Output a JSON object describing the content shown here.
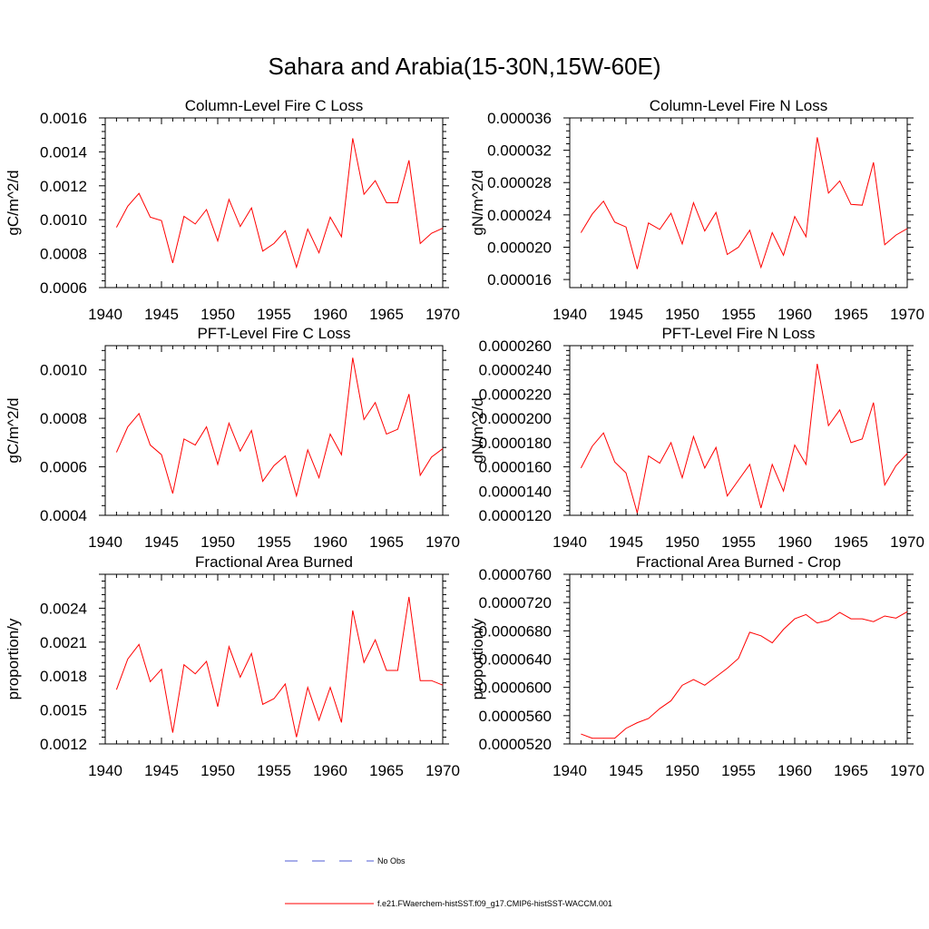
{
  "figure": {
    "title": "Sahara and Arabia(15-30N,15W-60E)",
    "legend": [
      {
        "label": "No Obs",
        "color": "#4f5bd5",
        "style": "dashed"
      },
      {
        "label": "f.e21.FWaerchem-histSST.f09_g17.CMIP6-histSST-WACCM.001",
        "color": "#ff0000",
        "style": "solid"
      }
    ]
  },
  "chart_data": [
    {
      "type": "line",
      "title": "Column-Level Fire C Loss",
      "ylabel": "gC/m^2/d",
      "xlim": [
        1940,
        1970
      ],
      "ylim": [
        0.0006,
        0.0016
      ],
      "xticks": [
        1940,
        1945,
        1950,
        1955,
        1960,
        1965,
        1970
      ],
      "yticks": [
        "0.0006",
        "0.0008",
        "0.0010",
        "0.0012",
        "0.0014",
        "0.0016"
      ],
      "x": [
        1941,
        1942,
        1943,
        1944,
        1945,
        1946,
        1947,
        1948,
        1949,
        1950,
        1951,
        1952,
        1953,
        1954,
        1955,
        1956,
        1957,
        1958,
        1959,
        1960,
        1961,
        1962,
        1963,
        1964,
        1965,
        1966,
        1967,
        1968,
        1969,
        1970
      ],
      "series": [
        {
          "color": "#ff0000",
          "values": [
            0.000955,
            0.00108,
            0.001155,
            0.001015,
            0.000995,
            0.000745,
            0.00102,
            0.000975,
            0.00106,
            0.000875,
            0.00112,
            0.00096,
            0.00107,
            0.000815,
            0.00086,
            0.000935,
            0.00072,
            0.000945,
            0.000805,
            0.001015,
            0.0009,
            0.00148,
            0.00115,
            0.00123,
            0.0011,
            0.0011,
            0.00135,
            0.00086,
            0.00092,
            0.00095
          ]
        }
      ]
    },
    {
      "type": "line",
      "title": "Column-Level Fire N Loss",
      "ylabel": "gN/m^2/d",
      "xlim": [
        1940,
        1970
      ],
      "ylim": [
        1.5e-05,
        3.6e-05
      ],
      "xticks": [
        1940,
        1945,
        1950,
        1955,
        1960,
        1965,
        1970
      ],
      "yticks": [
        "0.000016",
        "0.000020",
        "0.000024",
        "0.000028",
        "0.000032",
        "0.000036"
      ],
      "x": [
        1941,
        1942,
        1943,
        1944,
        1945,
        1946,
        1947,
        1948,
        1949,
        1950,
        1951,
        1952,
        1953,
        1954,
        1955,
        1956,
        1957,
        1958,
        1959,
        1960,
        1961,
        1962,
        1963,
        1964,
        1965,
        1966,
        1967,
        1968,
        1969,
        1970
      ],
      "series": [
        {
          "color": "#ff0000",
          "values": [
            2.18e-05,
            2.41e-05,
            2.57e-05,
            2.31e-05,
            2.25e-05,
            1.73e-05,
            2.3e-05,
            2.22e-05,
            2.42e-05,
            2.04e-05,
            2.55e-05,
            2.2e-05,
            2.43e-05,
            1.91e-05,
            2e-05,
            2.21e-05,
            1.75e-05,
            2.18e-05,
            1.9e-05,
            2.38e-05,
            2.13e-05,
            3.36e-05,
            2.67e-05,
            2.82e-05,
            2.53e-05,
            2.52e-05,
            3.05e-05,
            2.03e-05,
            2.15e-05,
            2.23e-05
          ]
        }
      ]
    },
    {
      "type": "line",
      "title": "PFT-Level Fire C Loss",
      "ylabel": "gC/m^2/d",
      "xlim": [
        1940,
        1970
      ],
      "ylim": [
        0.0004,
        0.0011
      ],
      "xticks": [
        1940,
        1945,
        1950,
        1955,
        1960,
        1965,
        1970
      ],
      "yticks": [
        "0.0004",
        "0.0006",
        "0.0008",
        "0.0010"
      ],
      "x": [
        1941,
        1942,
        1943,
        1944,
        1945,
        1946,
        1947,
        1948,
        1949,
        1950,
        1951,
        1952,
        1953,
        1954,
        1955,
        1956,
        1957,
        1958,
        1959,
        1960,
        1961,
        1962,
        1963,
        1964,
        1965,
        1966,
        1967,
        1968,
        1969,
        1970
      ],
      "series": [
        {
          "color": "#ff0000",
          "values": [
            0.00066,
            0.000765,
            0.00082,
            0.00069,
            0.00065,
            0.00049,
            0.000715,
            0.00069,
            0.000765,
            0.00061,
            0.00078,
            0.000665,
            0.00075,
            0.00054,
            0.000605,
            0.000645,
            0.00048,
            0.00067,
            0.000555,
            0.000735,
            0.00065,
            0.00105,
            0.000795,
            0.000865,
            0.000735,
            0.000755,
            0.0009,
            0.000565,
            0.00064,
            0.000675
          ]
        }
      ]
    },
    {
      "type": "line",
      "title": "PFT-Level Fire N Loss",
      "ylabel": "gN/m^2/d",
      "xlim": [
        1940,
        1970
      ],
      "ylim": [
        1.2e-05,
        2.6e-05
      ],
      "xticks": [
        1940,
        1945,
        1950,
        1955,
        1960,
        1965,
        1970
      ],
      "yticks": [
        "0.0000120",
        "0.0000140",
        "0.0000160",
        "0.0000180",
        "0.0000200",
        "0.0000220",
        "0.0000240",
        "0.0000260"
      ],
      "x": [
        1941,
        1942,
        1943,
        1944,
        1945,
        1946,
        1947,
        1948,
        1949,
        1950,
        1951,
        1952,
        1953,
        1954,
        1955,
        1956,
        1957,
        1958,
        1959,
        1960,
        1961,
        1962,
        1963,
        1964,
        1965,
        1966,
        1967,
        1968,
        1969,
        1970
      ],
      "series": [
        {
          "color": "#ff0000",
          "values": [
            1.59e-05,
            1.77e-05,
            1.88e-05,
            1.64e-05,
            1.55e-05,
            1.22e-05,
            1.69e-05,
            1.63e-05,
            1.8e-05,
            1.51e-05,
            1.85e-05,
            1.59e-05,
            1.76e-05,
            1.36e-05,
            1.49e-05,
            1.62e-05,
            1.26e-05,
            1.62e-05,
            1.4e-05,
            1.78e-05,
            1.62e-05,
            2.45e-05,
            1.94e-05,
            2.07e-05,
            1.8e-05,
            1.83e-05,
            2.13e-05,
            1.45e-05,
            1.61e-05,
            1.71e-05
          ]
        }
      ]
    },
    {
      "type": "line",
      "title": "Fractional Area Burned",
      "ylabel": "proportion/y",
      "xlim": [
        1940,
        1970
      ],
      "ylim": [
        0.0012,
        0.0027
      ],
      "xticks": [
        1940,
        1945,
        1950,
        1955,
        1960,
        1965,
        1970
      ],
      "yticks": [
        "0.0012",
        "0.0015",
        "0.0018",
        "0.0021",
        "0.0024"
      ],
      "x": [
        1941,
        1942,
        1943,
        1944,
        1945,
        1946,
        1947,
        1948,
        1949,
        1950,
        1951,
        1952,
        1953,
        1954,
        1955,
        1956,
        1957,
        1958,
        1959,
        1960,
        1961,
        1962,
        1963,
        1964,
        1965,
        1966,
        1967,
        1968,
        1969,
        1970
      ],
      "series": [
        {
          "color": "#ff0000",
          "values": [
            0.00168,
            0.00195,
            0.00208,
            0.00175,
            0.00186,
            0.0013,
            0.0019,
            0.00182,
            0.00193,
            0.00153,
            0.00206,
            0.00179,
            0.002,
            0.00155,
            0.0016,
            0.00173,
            0.00126,
            0.0017,
            0.00141,
            0.0017,
            0.00139,
            0.00238,
            0.00192,
            0.00212,
            0.00185,
            0.00185,
            0.0025,
            0.00176,
            0.00176,
            0.00172
          ]
        }
      ]
    },
    {
      "type": "line",
      "title": "Fractional Area Burned - Crop",
      "ylabel": "proportion/y",
      "xlim": [
        1940,
        1970
      ],
      "ylim": [
        5.2e-05,
        7.6e-05
      ],
      "xticks": [
        1940,
        1945,
        1950,
        1955,
        1960,
        1965,
        1970
      ],
      "yticks": [
        "0.0000520",
        "0.0000560",
        "0.0000600",
        "0.0000640",
        "0.0000680",
        "0.0000720",
        "0.0000760"
      ],
      "x": [
        1941,
        1942,
        1943,
        1944,
        1945,
        1946,
        1947,
        1948,
        1949,
        1950,
        1951,
        1952,
        1953,
        1954,
        1955,
        1956,
        1957,
        1958,
        1959,
        1960,
        1961,
        1962,
        1963,
        1964,
        1965,
        1966,
        1967,
        1968,
        1969,
        1970
      ],
      "series": [
        {
          "color": "#ff0000",
          "values": [
            5.34e-05,
            5.28e-05,
            5.28e-05,
            5.28e-05,
            5.42e-05,
            5.5e-05,
            5.56e-05,
            5.7e-05,
            5.81e-05,
            6.03e-05,
            6.11e-05,
            6.03e-05,
            6.15e-05,
            6.27e-05,
            6.41e-05,
            6.78e-05,
            6.73e-05,
            6.63e-05,
            6.82e-05,
            6.97e-05,
            7.03e-05,
            6.91e-05,
            6.95e-05,
            7.06e-05,
            6.97e-05,
            6.97e-05,
            6.93e-05,
            7.01e-05,
            6.98e-05,
            7.07e-05
          ]
        }
      ]
    }
  ]
}
